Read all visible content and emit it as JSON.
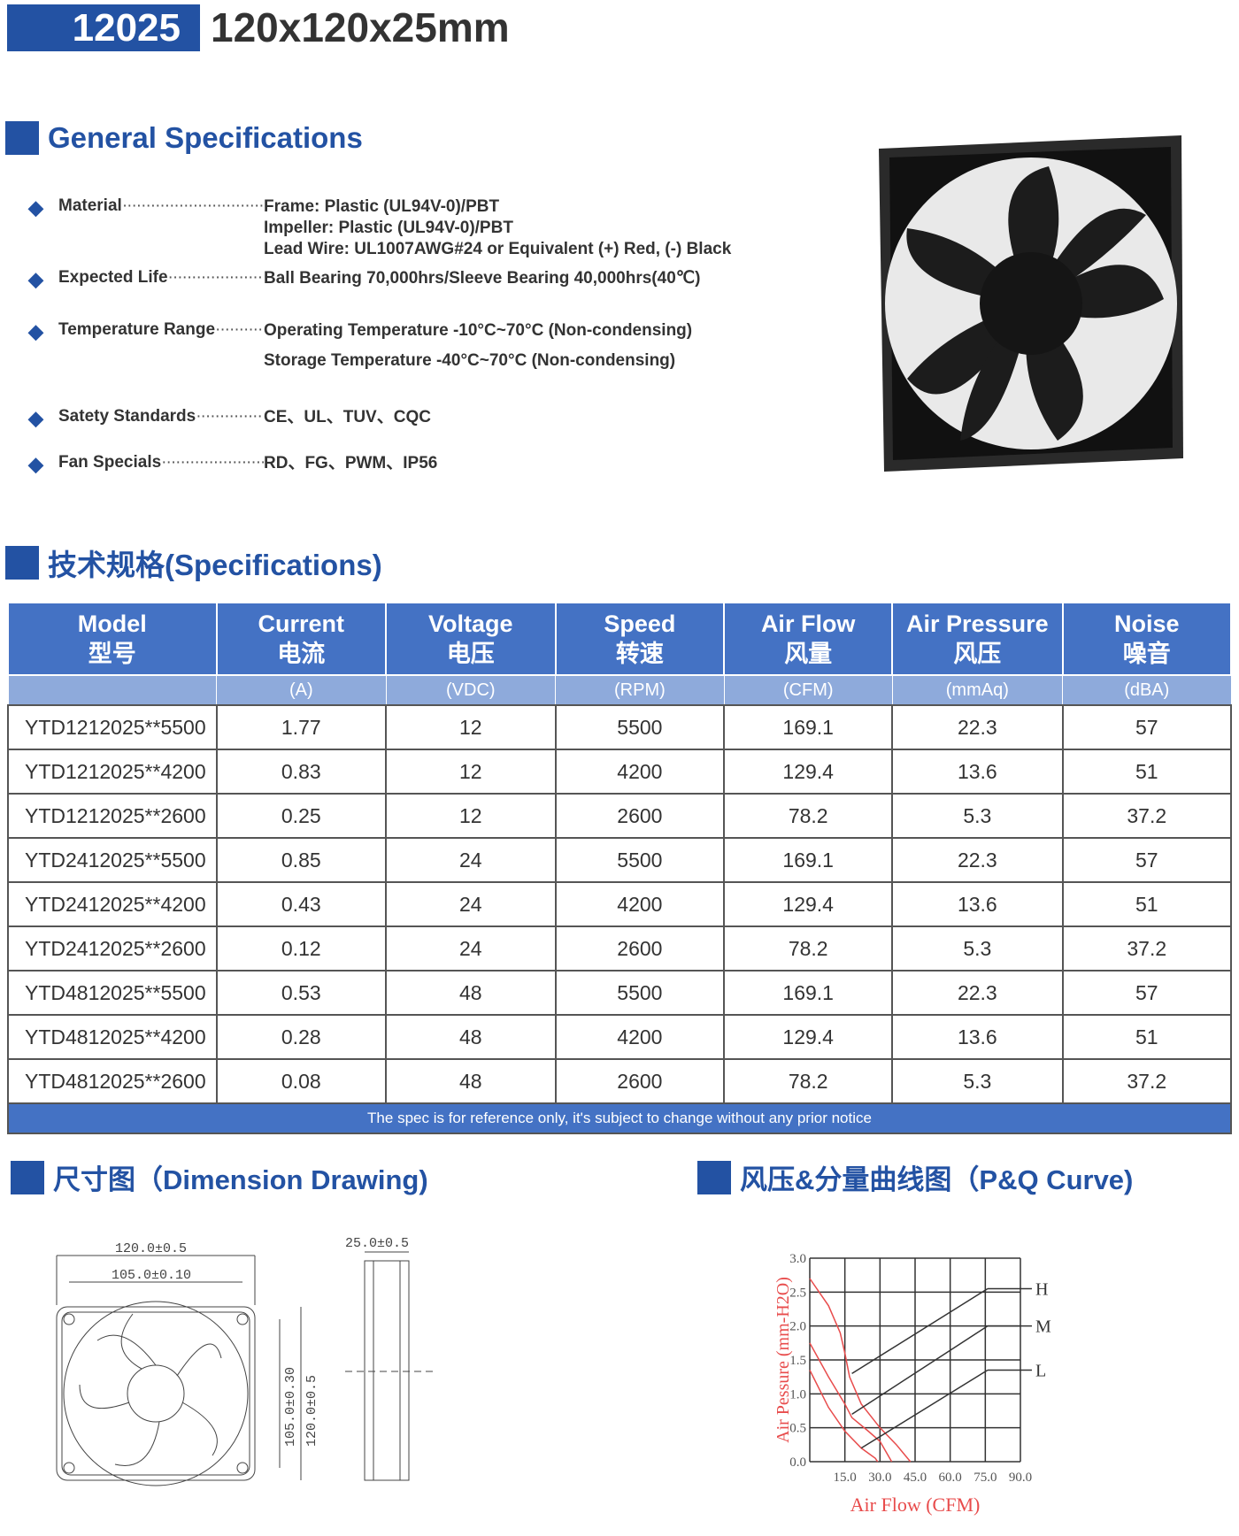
{
  "header": {
    "model": "12025",
    "size": "120x120x25mm"
  },
  "general": {
    "title": "General Specifications",
    "items": [
      {
        "label": "Material",
        "values": [
          "Frame: Plastic (UL94V-0)/PBT",
          "Impeller: Plastic (UL94V-0)/PBT",
          "Lead Wire: UL1007AWG#24 or Equivalent (+) Red, (-) Black"
        ]
      },
      {
        "label": "Expected Life",
        "values": [
          "Ball Bearing 70,000hrs/Sleeve Bearing 40,000hrs(40℃)"
        ]
      },
      {
        "label": "Temperature Range",
        "values": [
          "Operating Temperature -10°C~70°C (Non-condensing)",
          "Storage Temperature -40°C~70°C (Non-condensing)"
        ]
      },
      {
        "label": "Satety Standards",
        "values": [
          "CE、UL、TUV、CQC"
        ]
      },
      {
        "label": "Fan Specials",
        "values": [
          "RD、FG、PWM、IP56"
        ]
      }
    ]
  },
  "spec": {
    "title": "技术规格(Specifications)",
    "headers": [
      [
        "Model",
        "型号",
        ""
      ],
      [
        "Current",
        "电流",
        "(A)"
      ],
      [
        "Voltage",
        "电压",
        "(VDC)"
      ],
      [
        "Speed",
        "转速",
        "(RPM)"
      ],
      [
        "Air Flow",
        "风量",
        "(CFM)"
      ],
      [
        "Air Pressure",
        "风压",
        "(mmAq)"
      ],
      [
        "Noise",
        "噪音",
        "(dBA)"
      ]
    ],
    "rows": [
      [
        "YTD1212025**5500",
        "1.77",
        "12",
        "5500",
        "169.1",
        "22.3",
        "57"
      ],
      [
        "YTD1212025**4200",
        "0.83",
        "12",
        "4200",
        "129.4",
        "13.6",
        "51"
      ],
      [
        "YTD1212025**2600",
        "0.25",
        "12",
        "2600",
        "78.2",
        "5.3",
        "37.2"
      ],
      [
        "YTD2412025**5500",
        "0.85",
        "24",
        "5500",
        "169.1",
        "22.3",
        "57"
      ],
      [
        "YTD2412025**4200",
        "0.43",
        "24",
        "4200",
        "129.4",
        "13.6",
        "51"
      ],
      [
        "YTD2412025**2600",
        "0.12",
        "24",
        "2600",
        "78.2",
        "5.3",
        "37.2"
      ],
      [
        "YTD4812025**5500",
        "0.53",
        "48",
        "5500",
        "169.1",
        "22.3",
        "57"
      ],
      [
        "YTD4812025**4200",
        "0.28",
        "48",
        "4200",
        "129.4",
        "13.6",
        "51"
      ],
      [
        "YTD4812025**2600",
        "0.08",
        "48",
        "2600",
        "78.2",
        "5.3",
        "37.2"
      ]
    ],
    "footer": "The spec is for reference only, it's subject to change without any prior notice"
  },
  "dimension": {
    "title": "尺寸图（Dimension Drawing)",
    "labels": [
      "120.0±0.5",
      "105.0±0.10",
      "105.0±0.30",
      "120.0±0.5",
      "25.0±0.5"
    ]
  },
  "pq": {
    "title": "风压&分量曲线图（P&Q Curve)"
  },
  "chart_data": {
    "type": "line",
    "xlabel": "Air Flow  (CFM)",
    "ylabel": "Air Pessure (mm-H2O)",
    "xlim": [
      0,
      90
    ],
    "ylim": [
      0,
      3
    ],
    "xticks": [
      "15.0",
      "30.0",
      "45.0",
      "60.0",
      "75.0",
      "90.0"
    ],
    "yticks": [
      "0.0",
      "0.5",
      "1.0",
      "1.5",
      "2.0",
      "2.5",
      "3.0"
    ],
    "grid": true,
    "series": [
      {
        "name": "H",
        "points": [
          [
            0,
            2.7
          ],
          [
            8,
            2.3
          ],
          [
            13,
            1.9
          ],
          [
            15,
            1.6
          ],
          [
            17,
            1.25
          ],
          [
            22,
            0.85
          ],
          [
            30,
            0.5
          ],
          [
            37,
            0.25
          ],
          [
            43,
            0
          ]
        ]
      },
      {
        "name": "M",
        "points": [
          [
            0,
            1.75
          ],
          [
            8,
            1.25
          ],
          [
            15,
            0.85
          ],
          [
            18,
            0.65
          ],
          [
            25,
            0.45
          ],
          [
            30,
            0.3
          ],
          [
            35,
            0
          ]
        ]
      },
      {
        "name": "L",
        "points": [
          [
            0,
            1.35
          ],
          [
            8,
            0.8
          ],
          [
            15,
            0.45
          ],
          [
            22,
            0.2
          ],
          [
            28,
            0.05
          ],
          [
            29,
            0
          ]
        ]
      }
    ],
    "line_color": "#e84c4c"
  }
}
